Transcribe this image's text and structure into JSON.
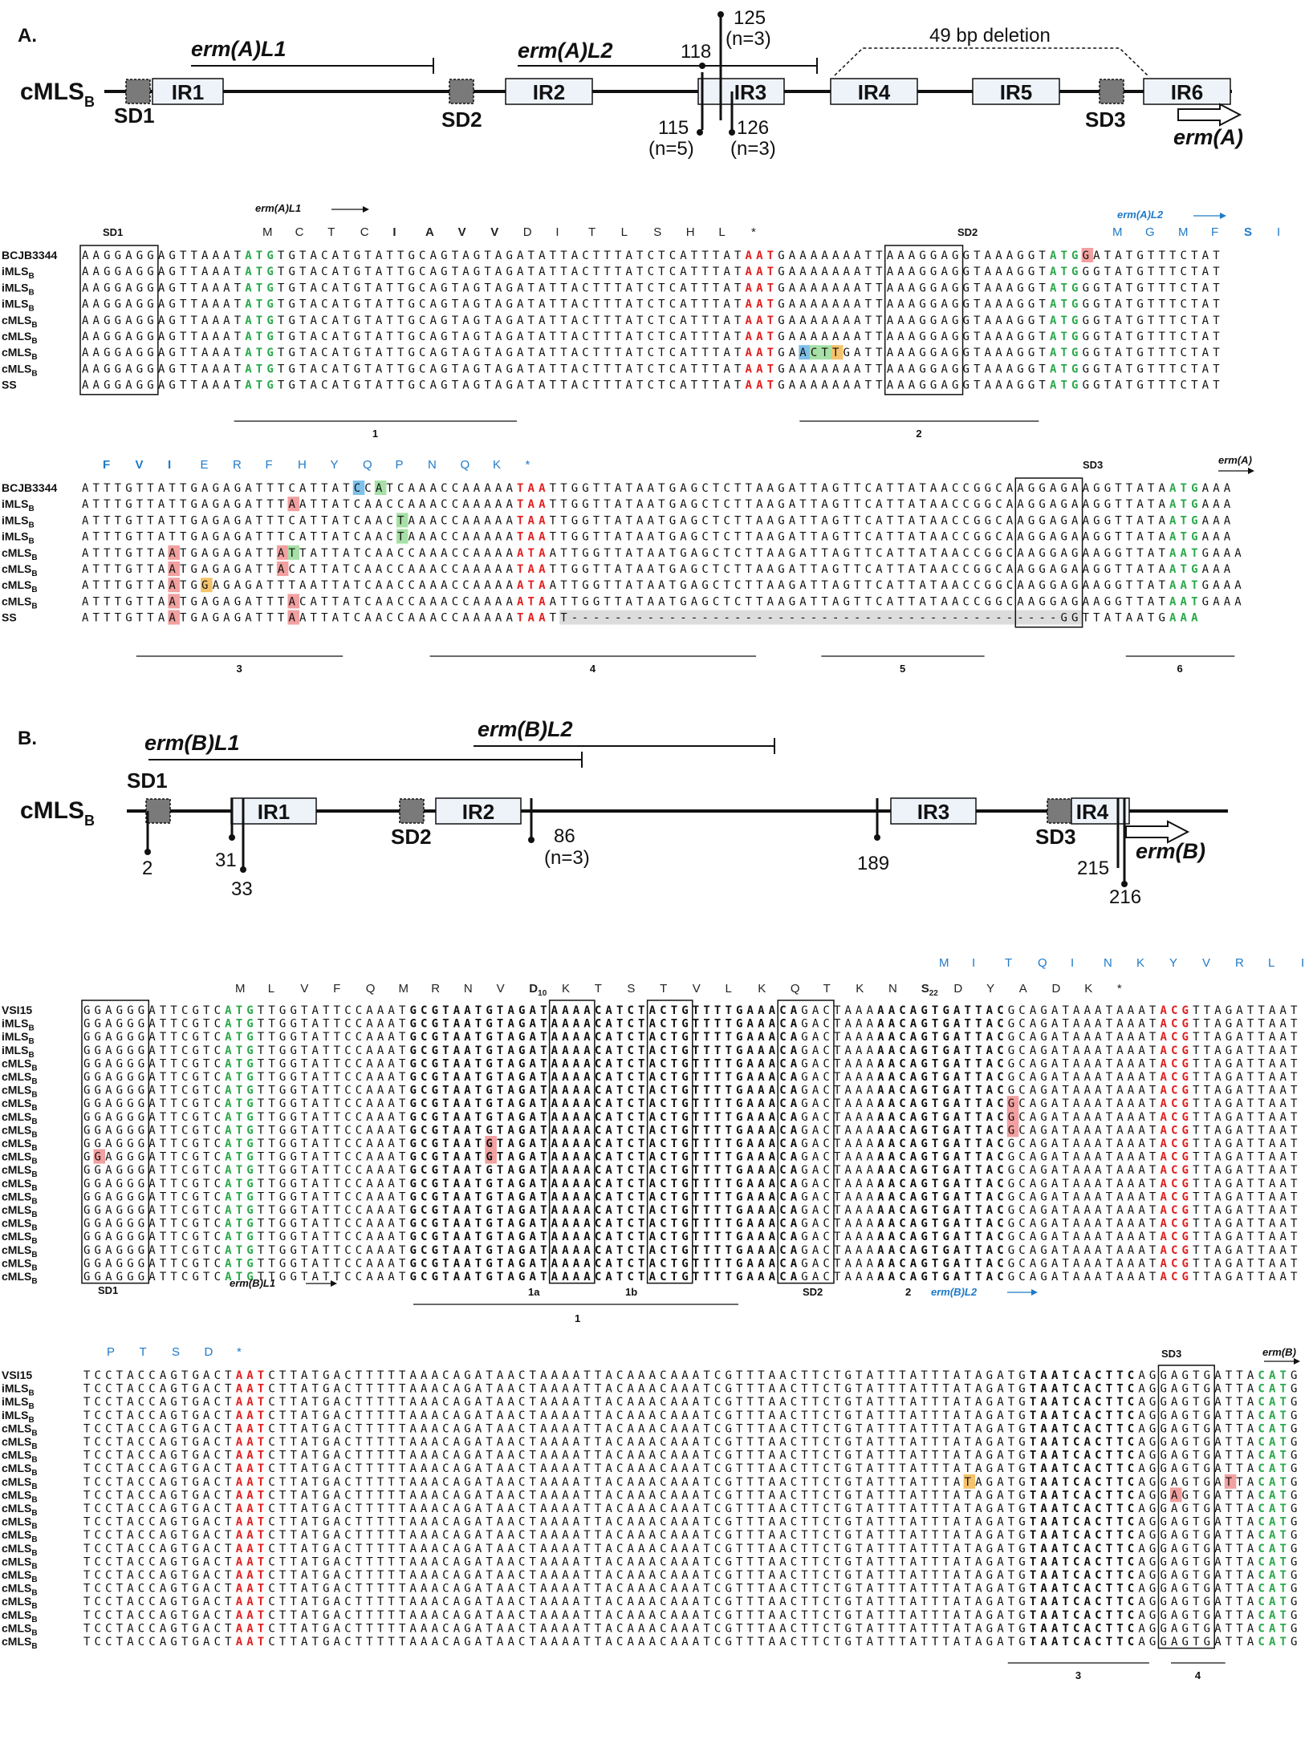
{
  "panelA": {
    "letter": "A.",
    "track": {
      "label": "cMLS",
      "label_sub": "B",
      "boxes": [
        "IR1",
        "IR2",
        "IR3",
        "IR4",
        "IR5",
        "IR6"
      ],
      "sds": [
        "SD1",
        "SD2",
        "SD3"
      ],
      "leaders": [
        "erm(A)L1",
        "erm(A)L2"
      ],
      "gene": "erm(A)",
      "deletion": "49 bp deletion",
      "markers": [
        "125",
        "(n=3)",
        "118",
        "115",
        "(n=5)",
        "126",
        "(n=3)"
      ]
    },
    "block1": {
      "top_labels": {
        "sd1": "SD1",
        "sd2": "SD2",
        "lead1": "erm(A)L1",
        "lead2": "erm(A)L2"
      },
      "aa1": [
        "M",
        "C",
        "T",
        "C",
        "I",
        "A",
        "V",
        "V",
        "D",
        "I",
        "T",
        "L",
        "S",
        "H",
        "L",
        "*"
      ],
      "aa2": [
        "M",
        "G",
        "M",
        "F",
        "S",
        "I"
      ],
      "names": [
        "BCJB3344",
        "iMLS",
        "iMLS",
        "iMLS",
        "cMLS",
        "cMLS",
        "cMLS",
        "cMLS",
        "SS"
      ],
      "subs": [
        "",
        "B",
        "B",
        "B",
        "B",
        "B",
        "B",
        "B",
        ""
      ],
      "rows": [
        "AAGGAGGAGTTAAATATGTGTACATGTATTGCAGTAGTAGATATTACTTTATCTCATTTATAATGAAAAAAATTAAAGGAGGTAAAGGTATGGATATGTTTCTAT",
        "AAGGAGGAGTTAAATATGTGTACATGTATTGCAGTAGTAGATATTACTTTATCTCATTTATAATGAAAAAAATTAAAGGAGGTAAAGGTATGGGTATGTTTCTAT",
        "AAGGAGGAGTTAAATATGTGTACATGTATTGCAGTAGTAGATATTACTTTATCTCATTTATAATGAAAAAAATTAAAGGAGGTAAAGGTATGGGTATGTTTCTAT",
        "AAGGAGGAGTTAAATATGTGTACATGTATTGCAGTAGTAGATATTACTTTATCTCATTTATAATGAAAAAAATTAAAGGAGGTAAAGGTATGGGTATGTTTCTAT",
        "AAGGAGGAGTTAAATATGTGTACATGTATTGCAGTAGTAGATATTACTTTATCTCATTTATAATGAAAAAAATTAAAGGAGGTAAAGGTATGGGTATGTTTCTAT",
        "AAGGAGGAGTTAAATATGTGTACATGTATTGCAGTAGTAGATATTACTTTATCTCATTTATAATGAAAAAAATTAAAGGAGGTAAAGGTATGGGTATGTTTCTAT",
        "AAGGAGGAGTTAAATATGTGTACATGTATTGCAGTAGTAGATATTACTTTATCTCATTTATAATGAACTTGATTAAAGGAGGTAAAGGTATGGGTATGTTTCTAT",
        "AAGGAGGAGTTAAATATGTGTACATGTATTGCAGTAGTAGATATTACTTTATCTCATTTATAATGAAAAAAATTAAAGGAGGTAAAGGTATGGGTATGTTTCTAT",
        "AAGGAGGAGTTAAATATGTGTACATGTATTGCAGTAGTAGATATTACTTTATCTCATTTATAATGAAAAAAATTAAAGGAGGTAAAGGTATGGGTATGTTTCTAT"
      ],
      "under": [
        "1",
        "2"
      ]
    },
    "block2": {
      "top_labels": {
        "sd3": "SD3",
        "gene": "erm(A)"
      },
      "aa": [
        "F",
        "V",
        "I",
        "E",
        "R",
        "F",
        "H",
        "Y",
        "Q",
        "P",
        "N",
        "Q",
        "K",
        "*"
      ],
      "names": [
        "BCJB3344",
        "iMLS",
        "iMLS",
        "iMLS",
        "cMLS",
        "cMLS",
        "cMLS",
        "cMLS",
        "SS"
      ],
      "subs": [
        "",
        "B",
        "B",
        "B",
        "B",
        "B",
        "B",
        "B",
        ""
      ],
      "rows": [
        "ATTTGTTATTGAGAGATTTCATTATCCATCAAACCAAAAATAATTGGTTATAATGAGCTCTTAAGATTAGTTCATTATAACCGGCAAGGAGAAGGTTATAATGAAA",
        "ATTTGTTATTGAGAGATTTAATTATCAACCAAACCAAAAATAATTGGTTATAATGAGCTCTTAAGATTAGTTCATTATAACCGGCAAGGAGAAGGTTATAATGAAA",
        "ATTTGTTATTGAGAGATTTCATTATCAACTAAACCAAAAATAATTGGTTATAATGAGCTCTTAAGATTAGTTCATTATAACCGGCAAGGAGAAGGTTATAATGAAA",
        "ATTTGTTATTGAGAGATTTCATTATCAACTAAACCAAAAATAATTGGTTATAATGAGCTCTTAAGATTAGTTCATTATAACCGGCAAGGAGAAGGTTATAATGAAA",
        "ATTTGTTAATGAGAGATTATTATTATCAACCAAACCAAAAATAATTGGTTATAATGAGCTCTTAAGATTAGTTCATTATAACCGGCAAGGAGAAGGTTATAATGAAA",
        "ATTTGTTAATGAGAGATTACATTATCAACCAAACCAAAAATAATTGGTTATAATGAGCTCTTAAGATTAGTTCATTATAACCGGCAAGGAGAAGGTTATAATGAAA",
        "ATTTGTTAATGGAGAGATTTAATTATCAACCAAACCAAAAATAATTGGTTATAATGAGCTCTTAAGATTAGTTCATTATAACCGGCAAGGAGAAGGTTATAATGAAA",
        "ATTTGTTAATGAGAGATTTACATTATCAACCAAACCAAAAATAATTGGTTATAATGAGCTCTTAAGATTAGTTCATTATAACCGGCAAGGAGAAGGTTATAATGAAA",
        "ATTTGTTAATGAGAGATTTAATTATCAACCAAACCAAAAATAATT---------------------------------------------GGTTATAATGAAA"
      ],
      "under": [
        "3",
        "4",
        "5",
        "6"
      ]
    }
  },
  "panelB": {
    "letter": "B.",
    "track": {
      "label": "cMLS",
      "label_sub": "B",
      "boxes": [
        "IR1",
        "IR2",
        "IR3",
        "IR4"
      ],
      "sds": [
        "SD1",
        "SD2",
        "SD3"
      ],
      "leaders": [
        "erm(B)L1",
        "erm(B)L2"
      ],
      "gene": "erm(B)",
      "markers": [
        "2",
        "31",
        "33",
        "86",
        "(n=3)",
        "189",
        "215",
        "216"
      ]
    },
    "block3": {
      "aa_top": [
        "M",
        "I",
        "T",
        "Q",
        "I",
        "N",
        "K",
        "Y",
        "V",
        "R",
        "L",
        "I"
      ],
      "aa_main": [
        "M",
        "L",
        "V",
        "F",
        "Q",
        "M",
        "R",
        "N",
        "V",
        "D",
        "K",
        "T",
        "S",
        "T",
        "V",
        "L",
        "K",
        "Q",
        "T",
        "K",
        "N",
        "S",
        "D",
        "Y",
        "A",
        "D",
        "K",
        "*"
      ],
      "d10": "D10",
      "s22": "S22",
      "names": [
        "VSI15",
        "iMLS",
        "iMLS",
        "iMLS",
        "cMLS",
        "cMLS",
        "cMLS",
        "cMLS",
        "cMLS",
        "cMLS",
        "cMLS",
        "cMLS",
        "cMLS",
        "cMLS",
        "cMLS",
        "cMLS",
        "cMLS",
        "cMLS",
        "cMLS",
        "cMLS",
        "cMLS"
      ],
      "subs": [
        "",
        "B",
        "B",
        "B",
        "B",
        "B",
        "B",
        "B",
        "B",
        "B",
        "B",
        "B",
        "B",
        "B",
        "B",
        "B",
        "B",
        "B",
        "B",
        "B",
        "B"
      ],
      "row": "GGAGGGATTCGTCATGTTGGTATTCCAAATGCGTAATGTAGATAAAACATCTACTGTTTTGAAACAGACTAAAAACAGTGATTACGCAGATAAATAAATACGTTAGATTAAT",
      "bottom_labels": {
        "sd1": "SD1",
        "lead1": "erm(B)L1",
        "m1a": "1a",
        "m1b": "1b",
        "sd2": "SD2",
        "m2": "2",
        "lead2": "erm(B)L2",
        "m1": "1"
      }
    },
    "block4": {
      "aa": [
        "P",
        "T",
        "S",
        "D",
        "*"
      ],
      "top_labels": {
        "sd3": "SD3",
        "gene": "erm(B)"
      },
      "names": [
        "VSI15",
        "iMLS",
        "iMLS",
        "iMLS",
        "cMLS",
        "cMLS",
        "cMLS",
        "cMLS",
        "cMLS",
        "cMLS",
        "cMLS",
        "cMLS",
        "cMLS",
        "cMLS",
        "cMLS",
        "cMLS",
        "cMLS",
        "cMLS",
        "cMLS",
        "cMLS",
        "cMLS"
      ],
      "subs": [
        "",
        "B",
        "B",
        "B",
        "B",
        "B",
        "B",
        "B",
        "B",
        "B",
        "B",
        "B",
        "B",
        "B",
        "B",
        "B",
        "B",
        "B",
        "B",
        "B",
        "B"
      ],
      "row": "TCCTACCAGTGACTAATCTTATGACTTTTTAAACAGATAACTAAAATTACAAACAAATCGTTTAACTTCTGTATTTATTTATAGATGTAATCACTTCAGGAGTGATTACATG",
      "under": [
        "3",
        "4"
      ]
    }
  },
  "colors": {
    "start": "#2aa84a",
    "stop": "#e02020",
    "red_hl": "#f2a0a0",
    "blue_hl": "#7fc0ea",
    "green_hl": "#a6e0a6",
    "yellow_hl": "#f5c36b",
    "box_fill": "#eef3fa",
    "sd_fill": "#7a7a7a",
    "leader2": "#1f7ac8"
  }
}
